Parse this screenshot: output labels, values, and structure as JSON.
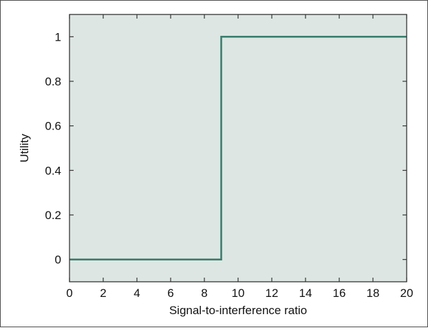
{
  "chart_data": {
    "type": "line",
    "title": "",
    "xlabel": "Signal-to-interference ratio",
    "ylabel": "Utility",
    "xlim": [
      0,
      20
    ],
    "ylim": [
      -0.1,
      1.1
    ],
    "x_ticks": [
      0,
      2,
      4,
      6,
      8,
      10,
      12,
      14,
      16,
      18,
      20
    ],
    "x_tick_labels": [
      "0",
      "2",
      "4",
      "6",
      "8",
      "10",
      "12",
      "14",
      "16",
      "18",
      "20"
    ],
    "y_ticks": [
      0,
      0.2,
      0.4,
      0.6,
      0.8,
      1
    ],
    "y_tick_labels": [
      "0",
      "0.2",
      "0.4",
      "0.6",
      "0.8",
      "1"
    ],
    "grid": false,
    "legend": "none",
    "series": [
      {
        "step": "post",
        "x": [
          0,
          9,
          20
        ],
        "y": [
          0,
          1,
          1
        ]
      }
    ]
  },
  "colors": {
    "plot_background": "#dde6e2",
    "series_line": "#3a7d6e",
    "axis_line": "#333333",
    "figure_border": "#4a4a4a"
  }
}
